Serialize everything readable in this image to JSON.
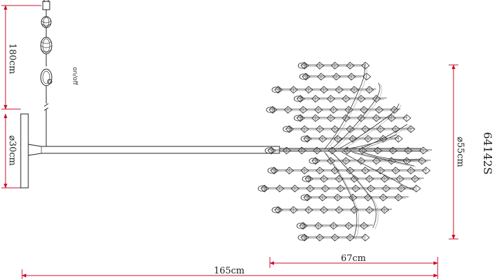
{
  "product_code": "64142S",
  "switch_label": "on/off",
  "dimensions": {
    "cord_length": "180cm",
    "canopy_diameter": "⌀30cm",
    "total_width": "165cm",
    "head_width": "67cm",
    "head_height": "⌀55cm"
  },
  "colors": {
    "line": "#222222",
    "dimension_line": "#c8102e"
  }
}
